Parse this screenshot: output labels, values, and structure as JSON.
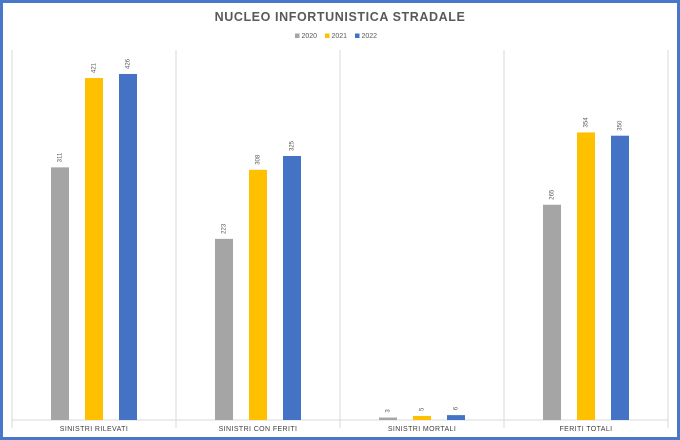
{
  "chart_data": {
    "type": "bar",
    "title": "NUCLEO INFORTUNISTICA STRADALE",
    "categories": [
      "SINISTRI RILEVATI",
      "SINISTRI CON FERITI",
      "SINISTRI MORTALI",
      "FERITI TOTALI"
    ],
    "series": [
      {
        "name": "2020",
        "color": "#a5a5a5",
        "values": [
          311,
          223,
          3,
          265
        ]
      },
      {
        "name": "2021",
        "color": "#ffc000",
        "values": [
          421,
          308,
          5,
          354
        ]
      },
      {
        "name": "2022",
        "color": "#4472c4",
        "values": [
          426,
          325,
          6,
          350
        ]
      }
    ],
    "legend_position": "top-center",
    "grid": false,
    "ylim": [
      0,
      426
    ]
  }
}
